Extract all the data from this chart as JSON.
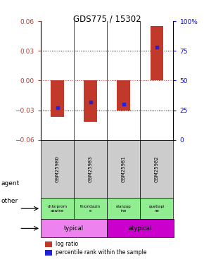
{
  "title": "GDS775 / 15302",
  "samples": [
    "GSM25980",
    "GSM25983",
    "GSM25981",
    "GSM25982"
  ],
  "log_ratios": [
    -0.037,
    -0.042,
    -0.03,
    0.055
  ],
  "percentile_ranks": [
    0.27,
    0.32,
    0.3,
    0.78
  ],
  "ylim_left": [
    -0.06,
    0.06
  ],
  "ylim_right": [
    0,
    1.0
  ],
  "yticks_left": [
    -0.06,
    -0.03,
    0,
    0.03,
    0.06
  ],
  "yticks_right": [
    0,
    0.25,
    0.5,
    0.75,
    1.0
  ],
  "ytick_labels_right": [
    "0",
    "25",
    "50",
    "75",
    "100%"
  ],
  "bar_color_red": "#c0392b",
  "bar_color_blue": "#2020dd",
  "zero_line_color": "#c0392b",
  "agent_labels": [
    "chlorprom\nazwine",
    "thioridazin\ne",
    "olanzap\nine",
    "quetiapi\nne"
  ],
  "agent_color": "#90ee90",
  "other_group1_label": "typical",
  "other_group1_color": "#ee82ee",
  "other_group2_label": "atypical",
  "other_group2_color": "#cc00cc",
  "sample_bg_color": "#cccccc",
  "legend_red": "log ratio",
  "legend_blue": "percentile rank within the sample"
}
